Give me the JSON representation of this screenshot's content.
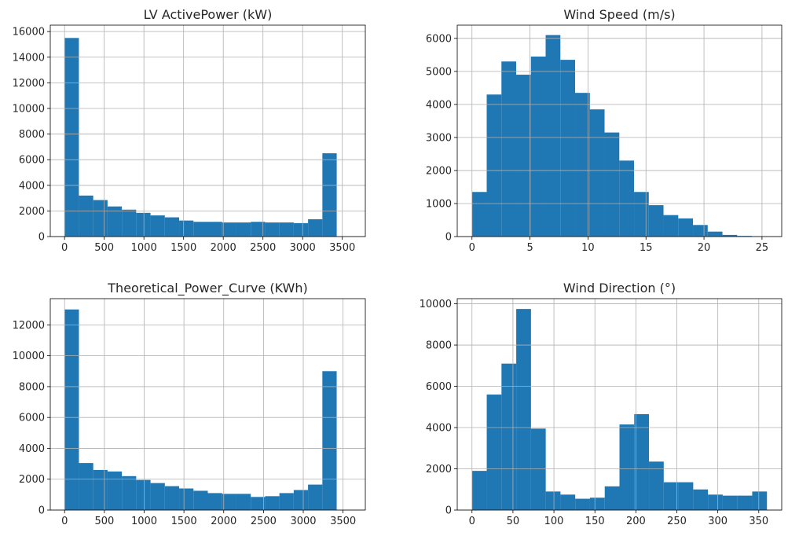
{
  "chart_data": [
    {
      "type": "bar",
      "title": "LV ActivePower (kW)",
      "xlabel": "",
      "ylabel": "",
      "color": "#1f77b4",
      "grid": true,
      "bin_start": 0,
      "bin_width": 180.5,
      "values": [
        15500,
        3200,
        2850,
        2350,
        2100,
        1850,
        1650,
        1500,
        1250,
        1150,
        1150,
        1100,
        1100,
        1150,
        1100,
        1100,
        1050,
        1350,
        6500
      ],
      "xlim": [
        -180,
        3790
      ],
      "ylim": [
        0,
        16500
      ],
      "xticks": [
        0,
        500,
        1000,
        1500,
        2000,
        2500,
        3000,
        3500
      ],
      "yticks": [
        0,
        2000,
        4000,
        6000,
        8000,
        10000,
        12000,
        14000,
        16000
      ]
    },
    {
      "type": "bar",
      "title": "Wind Speed (m/s)",
      "xlabel": "",
      "ylabel": "",
      "color": "#1f77b4",
      "grid": true,
      "bin_start": 0,
      "bin_width": 1.27,
      "values": [
        1350,
        4300,
        5300,
        4900,
        5450,
        6100,
        5350,
        4350,
        3850,
        3150,
        2300,
        1350,
        950,
        650,
        550,
        350,
        150,
        50,
        20,
        10
      ],
      "xlim": [
        -1.27,
        26.7
      ],
      "ylim": [
        0,
        6400
      ],
      "xticks": [
        0,
        5,
        10,
        15,
        20,
        25
      ],
      "yticks": [
        0,
        1000,
        2000,
        3000,
        4000,
        5000,
        6000
      ]
    },
    {
      "type": "bar",
      "title": "Theoretical_Power_Curve (KWh)",
      "xlabel": "",
      "ylabel": "",
      "color": "#1f77b4",
      "grid": true,
      "bin_start": 0,
      "bin_width": 180,
      "values": [
        13000,
        3050,
        2600,
        2500,
        2200,
        1950,
        1750,
        1550,
        1400,
        1250,
        1100,
        1050,
        1050,
        850,
        900,
        1100,
        1300,
        1650,
        9000
      ],
      "xlim": [
        -180,
        3780
      ],
      "ylim": [
        0,
        13700
      ],
      "xticks": [
        0,
        500,
        1000,
        1500,
        2000,
        2500,
        3000,
        3500
      ],
      "yticks": [
        0,
        2000,
        4000,
        6000,
        8000,
        10000,
        12000
      ]
    },
    {
      "type": "bar",
      "title": "Wind Direction (°)",
      "xlabel": "",
      "ylabel": "",
      "color": "#1f77b4",
      "grid": true,
      "bin_start": 0,
      "bin_width": 18,
      "values": [
        1900,
        5600,
        7100,
        9750,
        3950,
        900,
        750,
        550,
        600,
        1150,
        4150,
        4650,
        2350,
        1350,
        1350,
        1000,
        750,
        700,
        700,
        900
      ],
      "xlim": [
        -18,
        378
      ],
      "ylim": [
        0,
        10250
      ],
      "xticks": [
        0,
        50,
        100,
        150,
        200,
        250,
        300,
        350
      ],
      "yticks": [
        0,
        2000,
        4000,
        6000,
        8000,
        10000
      ]
    }
  ]
}
